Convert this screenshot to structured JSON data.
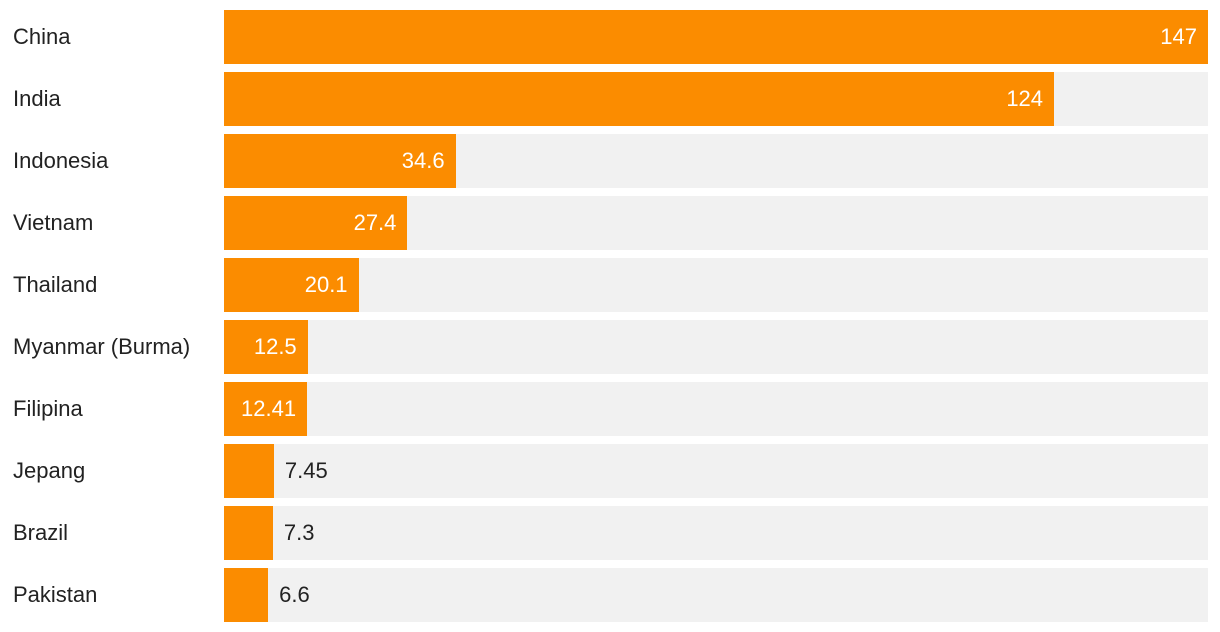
{
  "chart_data": {
    "type": "bar",
    "orientation": "horizontal",
    "title": "",
    "xlabel": "",
    "ylabel": "",
    "xlim": [
      0,
      147
    ],
    "bar_color": "#fb8c00",
    "track_color": "#f1f1f1",
    "categories": [
      "China",
      "India",
      "Indonesia",
      "Vietnam",
      "Thailand",
      "Myanmar (Burma)",
      "Filipina",
      "Jepang",
      "Brazil",
      "Pakistan"
    ],
    "values": [
      147,
      124,
      34.6,
      27.4,
      20.1,
      12.5,
      12.41,
      7.45,
      7.3,
      6.6
    ],
    "value_labels": [
      "147",
      "124",
      "34.6",
      "27.4",
      "20.1",
      "12.5",
      "12.41",
      "7.45",
      "7.3",
      "6.6"
    ]
  }
}
